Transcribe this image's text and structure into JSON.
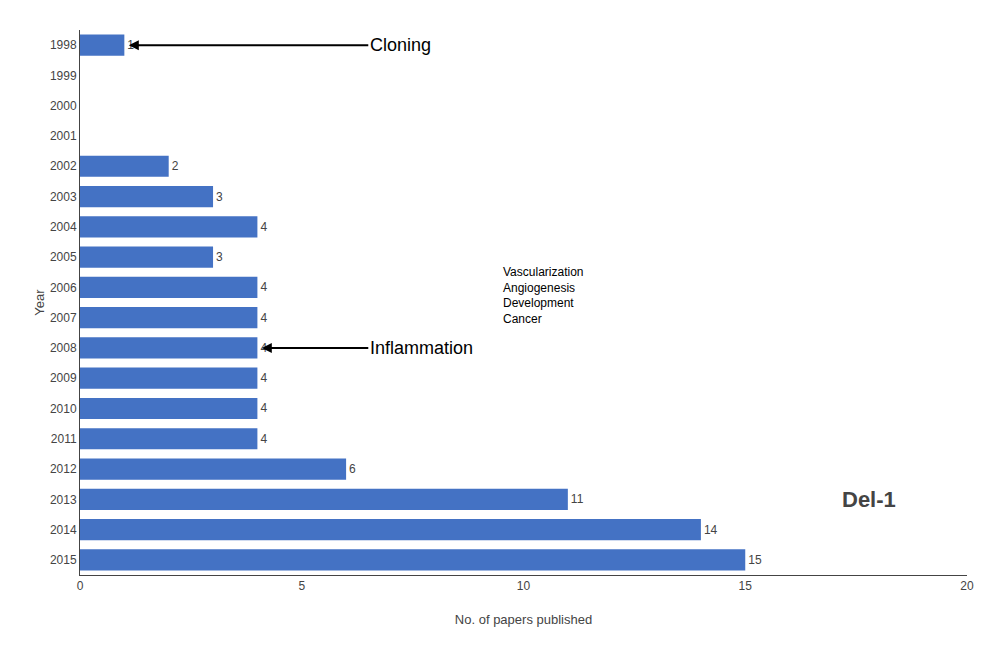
{
  "chart_data": {
    "type": "bar",
    "orientation": "horizontal",
    "categories": [
      "1998",
      "1999",
      "2000",
      "2001",
      "2002",
      "2003",
      "2004",
      "2005",
      "2006",
      "2007",
      "2008",
      "2009",
      "2010",
      "2011",
      "2012",
      "2013",
      "2014",
      "2015"
    ],
    "values": [
      1,
      0,
      0,
      0,
      2,
      3,
      4,
      3,
      4,
      4,
      4,
      4,
      4,
      4,
      6,
      11,
      14,
      15
    ],
    "value_labels": [
      "1",
      null,
      null,
      null,
      "2",
      "3",
      "4",
      "3",
      "4",
      "4",
      "4",
      "4",
      "4",
      "4",
      "6",
      "11",
      "14",
      "15"
    ],
    "data_labels": true,
    "color": "#4472C4",
    "xlabel": "No. of papers published",
    "ylabel": "Year",
    "xlim": [
      0,
      20
    ],
    "xticks": [
      0,
      5,
      10,
      15,
      20
    ],
    "grid": false,
    "annotations": [
      {
        "text": "Cloning",
        "category": "1998"
      },
      {
        "text": "Inflammation",
        "category": "2008"
      },
      {
        "text": "Vascularization\nAngiogenesis\nDevelopment\nCancer",
        "category": "2004"
      },
      {
        "text": "Del-1",
        "category": "2013"
      }
    ]
  }
}
